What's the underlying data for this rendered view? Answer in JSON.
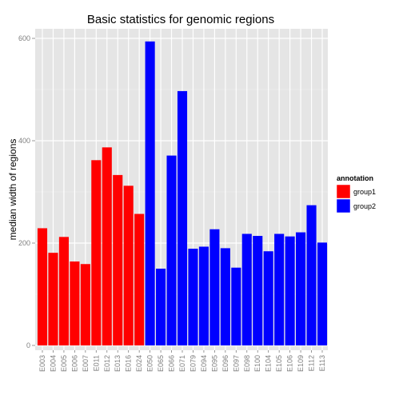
{
  "chart_data": {
    "type": "bar",
    "title": "Basic statistics for genomic regions",
    "xlabel": "",
    "ylabel": "median width of regions",
    "ylim": [
      0,
      620
    ],
    "yticks": [
      0,
      200,
      400,
      600
    ],
    "grid": true,
    "legend": {
      "title": "annotation",
      "placement": "right",
      "entries": [
        {
          "name": "group1",
          "color": "#ff0000"
        },
        {
          "name": "group2",
          "color": "#0000ff"
        }
      ]
    },
    "categories": [
      "E003",
      "E004",
      "E005",
      "E006",
      "E007",
      "E011",
      "E012",
      "E013",
      "E016",
      "E024",
      "E050",
      "E065",
      "E066",
      "E071",
      "E079",
      "E094",
      "E095",
      "E096",
      "E097",
      "E098",
      "E100",
      "E104",
      "E105",
      "E106",
      "E109",
      "E112",
      "E113"
    ],
    "values": [
      229,
      181,
      212,
      164,
      159,
      362,
      387,
      333,
      312,
      257,
      594,
      150,
      371,
      497,
      189,
      193,
      227,
      190,
      152,
      218,
      214,
      184,
      218,
      213,
      221,
      274,
      201
    ],
    "groups": [
      "group1",
      "group1",
      "group1",
      "group1",
      "group1",
      "group1",
      "group1",
      "group1",
      "group1",
      "group1",
      "group2",
      "group2",
      "group2",
      "group2",
      "group2",
      "group2",
      "group2",
      "group2",
      "group2",
      "group2",
      "group2",
      "group2",
      "group2",
      "group2",
      "group2",
      "group2",
      "group2"
    ]
  }
}
